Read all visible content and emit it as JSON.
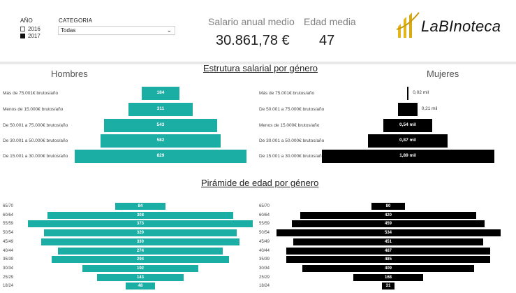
{
  "slicers": {
    "year": {
      "title": "AÑO",
      "options": [
        {
          "label": "2016",
          "checked": false
        },
        {
          "label": "2017",
          "checked": true
        }
      ]
    },
    "category": {
      "title": "CATEGORIA",
      "value": "Todas"
    }
  },
  "kpis": {
    "salary": {
      "title": "Salario anual medio",
      "value": "30.861,78 €"
    },
    "age": {
      "title": "Edad media",
      "value": "47"
    }
  },
  "logo": {
    "text": "LaBInoteca"
  },
  "salary_section": {
    "title": "Estrutura salarial por género",
    "men_title": "Hombres",
    "women_title": "Mujeres",
    "colors": {
      "men": "#1aaea5",
      "women": "#000000"
    }
  },
  "age_section": {
    "title": "Pirámide de edad por género"
  },
  "chart_data": [
    {
      "type": "bar",
      "title": "Estrutura salarial por género",
      "series": [
        {
          "name": "Hombres",
          "categories": [
            "Más de 75.001€ brutos/año",
            "Menos de 15.000€ brutos/año",
            "De 50.001 a 75.000€ brutos/año",
            "De 30.001 a 50.000€ brutos/año",
            "De 15.001 a 30.000€ brutos/año"
          ],
          "values": [
            184,
            311,
            543,
            582,
            829
          ],
          "labels": [
            "184",
            "311",
            "543",
            "582",
            "829"
          ]
        },
        {
          "name": "Mujeres",
          "categories": [
            "Más de 75.001€ brutos/año",
            "De 50.001 a 75.000€ brutos/año",
            "Menos de 15.000€ brutos/año",
            "De 30.001 a 50.000€ brutos/año",
            "De 15.001 a 30.000€ brutos/año"
          ],
          "values": [
            0.02,
            0.21,
            0.54,
            0.87,
            1.89
          ],
          "labels": [
            "0,02 mil",
            "0,21 mil",
            "0,54 mil",
            "0,87 mil",
            "1,89 mil"
          ]
        }
      ]
    },
    {
      "type": "bar",
      "title": "Pirámide de edad por género",
      "categories": [
        "65/70",
        "60/64",
        "55/59",
        "50/54",
        "45/49",
        "40/44",
        "35/39",
        "30/34",
        "25/29",
        "18/24"
      ],
      "series": [
        {
          "name": "Hombres",
          "values": [
            84,
            308,
            373,
            320,
            330,
            274,
            294,
            192,
            143,
            48
          ]
        },
        {
          "name": "Mujeres",
          "values": [
            80,
            420,
            459,
            534,
            451,
            487,
            485,
            409,
            168,
            31
          ]
        }
      ]
    }
  ]
}
